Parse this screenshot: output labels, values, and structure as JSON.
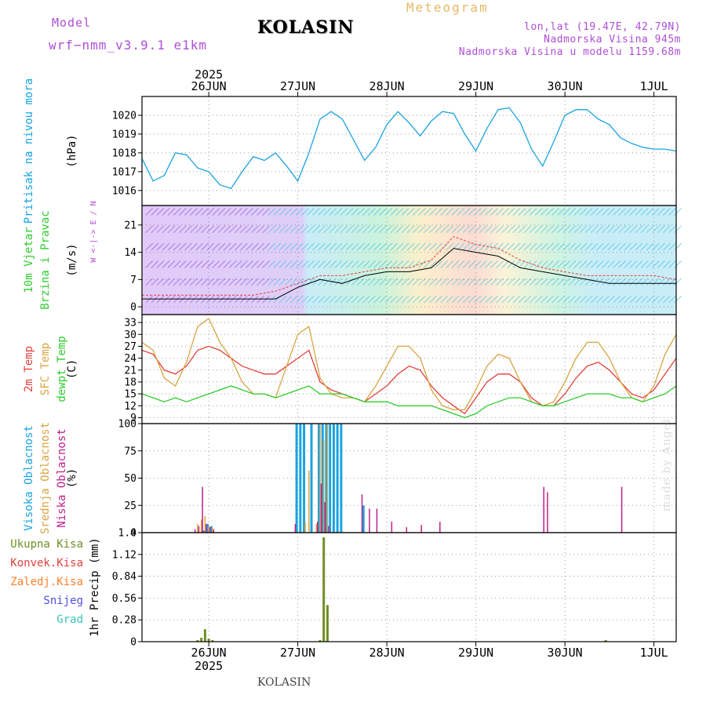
{
  "header": {
    "model_label": "Model",
    "model_run": "wrf−nmm_v3.9.1 e1km",
    "location": "KOLASIN",
    "product": "Meteogram",
    "coords": "lon,lat (19.47E, 42.79N)",
    "elevation": "Nadmorska Visina 945m",
    "model_elevation": "Nadmorska Visina u modelu 1159.68m"
  },
  "footer": {
    "location": "KOLASIN",
    "credit": "made by Angel"
  },
  "colors": {
    "pressure": "#1aa3e0",
    "temp2m": "#e0413c",
    "sfc_temp": "#d9a441",
    "dewpoint": "#2ecc2e",
    "cloud_high": "#1aa3e0",
    "cloud_mid": "#d9a441",
    "cloud_low": "#c01f8a",
    "precip_total": "#6f8f24",
    "precip_conv": "#e0413c",
    "precip_frz": "#ff7f2a",
    "snow": "#4f4fe0",
    "hail": "#39c6b9",
    "wind_axis_label": "#b04ed6"
  },
  "time_axis": {
    "top_year": "2025",
    "bottom_year": "2025",
    "days": [
      "26JUN",
      "27JUN",
      "28JUN",
      "29JUN",
      "30JUN",
      "1JUL"
    ]
  },
  "chart_data": [
    {
      "type": "line",
      "panel": "pressure",
      "ylabel_lines": [
        "Pritisak na nivou mora",
        "(hPa)"
      ],
      "yticks": [
        1016,
        1017,
        1018,
        1019,
        1020
      ],
      "ylim": [
        1015.2,
        1021.0
      ],
      "grid": true,
      "x_hours": [
        0,
        3,
        6,
        9,
        12,
        15,
        18,
        21,
        24,
        27,
        30,
        33,
        36,
        39,
        42,
        45,
        48,
        51,
        54,
        57,
        60,
        63,
        66,
        69,
        72,
        75,
        78,
        81,
        84,
        87,
        90,
        93,
        96,
        99,
        102,
        105,
        108,
        111,
        114,
        117,
        120,
        123,
        126,
        129,
        132,
        135,
        138,
        141,
        144
      ],
      "series": [
        {
          "values": [
            1017.7,
            1016.5,
            1016.8,
            1018.0,
            1017.9,
            1017.2,
            1017.0,
            1016.3,
            1016.1,
            1017.0,
            1017.8,
            1017.6,
            1018.0,
            1017.3,
            1016.5,
            1018.0,
            1019.8,
            1020.2,
            1019.8,
            1018.7,
            1017.6,
            1018.3,
            1019.5,
            1020.2,
            1019.6,
            1018.9,
            1019.7,
            1020.2,
            1020.1,
            1019.0,
            1018.1,
            1019.3,
            1020.3,
            1020.4,
            1019.6,
            1018.2,
            1017.3,
            1018.6,
            1020.0,
            1020.3,
            1020.3,
            1019.8,
            1019.5,
            1018.8,
            1018.5,
            1018.3,
            1018.2,
            1018.2,
            1018.1
          ]
        }
      ]
    },
    {
      "type": "line",
      "panel": "wind",
      "ylabel_lines": [
        "10m Vjetar",
        "Brzina i Pravac",
        "(m/s)"
      ],
      "direction_legend": "W <-|-> E / N",
      "yticks": [
        0,
        7,
        14,
        21
      ],
      "ylim": [
        -2,
        26
      ],
      "grid": true,
      "x_hours": [
        0,
        6,
        12,
        18,
        24,
        30,
        36,
        42,
        48,
        54,
        60,
        66,
        72,
        78,
        84,
        90,
        96,
        102,
        108,
        114,
        120,
        126,
        132,
        138,
        144
      ],
      "series": [
        {
          "values": [
            2,
            2,
            2,
            2,
            2,
            2,
            2,
            5,
            7,
            6,
            8,
            9,
            9,
            10,
            15,
            14,
            13,
            10,
            9,
            8,
            7,
            6,
            6,
            6,
            6
          ]
        },
        {
          "values": [
            3,
            3,
            3,
            3,
            3,
            3,
            4,
            6,
            8,
            8,
            9,
            10,
            10,
            12,
            18,
            16,
            15,
            12,
            10,
            9,
            8,
            8,
            8,
            8,
            7
          ]
        }
      ]
    },
    {
      "type": "line",
      "panel": "temperature",
      "ylabel_lines": [
        "2m Temp",
        "SFC Temp",
        "dewpt Temp",
        "(C)"
      ],
      "yticks": [
        9,
        12,
        15,
        18,
        21,
        24,
        27,
        30,
        33
      ],
      "ylim": [
        7.5,
        35
      ],
      "grid": true,
      "x_hours": [
        0,
        3,
        6,
        9,
        12,
        15,
        18,
        21,
        24,
        27,
        30,
        33,
        36,
        39,
        42,
        45,
        48,
        51,
        54,
        57,
        60,
        63,
        66,
        69,
        72,
        75,
        78,
        81,
        84,
        87,
        90,
        93,
        96,
        99,
        102,
        105,
        108,
        111,
        114,
        117,
        120,
        123,
        126,
        129,
        132,
        135,
        138,
        141,
        144
      ],
      "series": [
        {
          "name": "2m Temp",
          "values": [
            26,
            25,
            21,
            20,
            22,
            26,
            27,
            26,
            24,
            22,
            21,
            20,
            20,
            22,
            24,
            26,
            18,
            16,
            15,
            14,
            13,
            15,
            17,
            20,
            22,
            21,
            17,
            14,
            12,
            10,
            14,
            18,
            20,
            20,
            18,
            14,
            12,
            12,
            15,
            19,
            22,
            23,
            21,
            18,
            15,
            14,
            16,
            20,
            24
          ]
        },
        {
          "name": "SFC Temp",
          "values": [
            28,
            26,
            19,
            17,
            23,
            32,
            34,
            28,
            24,
            18,
            15,
            15,
            14,
            22,
            30,
            32,
            19,
            15,
            14,
            14,
            13,
            17,
            22,
            27,
            27,
            24,
            16,
            12,
            11,
            11,
            16,
            22,
            25,
            24,
            18,
            13,
            12,
            13,
            18,
            24,
            28,
            28,
            24,
            18,
            14,
            13,
            17,
            25,
            30
          ]
        },
        {
          "name": "dewpt Temp",
          "values": [
            15,
            14,
            13,
            14,
            13,
            14,
            15,
            16,
            17,
            16,
            15,
            15,
            14,
            15,
            16,
            17,
            15,
            15,
            15,
            14,
            13,
            13,
            13,
            12,
            12,
            12,
            12,
            11,
            10,
            9,
            10,
            12,
            13,
            14,
            14,
            13,
            12,
            12,
            13,
            14,
            15,
            15,
            15,
            14,
            14,
            13,
            14,
            15,
            17
          ]
        }
      ]
    },
    {
      "type": "bar",
      "panel": "clouds",
      "ylabel_lines": [
        "Visoka Oblacnost",
        "Srednja Oblacnost",
        "Niska Oblacnost",
        "(%)"
      ],
      "yticks": [
        0,
        25,
        50,
        75,
        100
      ],
      "ylim": [
        0,
        100
      ],
      "grid": true,
      "series": [
        {
          "name": "Visoka Oblacnost",
          "x_hours": [
            17,
            18,
            19,
            42,
            43,
            44,
            46,
            48,
            49,
            50,
            51,
            52,
            53,
            54,
            60
          ],
          "values": [
            2,
            8,
            6,
            100,
            100,
            100,
            100,
            100,
            100,
            100,
            100,
            100,
            100,
            100,
            25
          ]
        },
        {
          "name": "Srednja Oblacnost",
          "x_hours": [
            15,
            16,
            17,
            18,
            19,
            44,
            45,
            47,
            48,
            49,
            50
          ],
          "values": [
            8,
            12,
            15,
            6,
            4,
            10,
            57,
            8,
            100,
            85,
            100
          ]
        },
        {
          "name": "Niska Oblacnost",
          "x_hours": [
            14,
            15,
            16,
            17,
            18,
            19,
            41,
            47,
            48,
            49,
            50,
            59,
            61,
            63,
            67,
            71,
            75,
            80,
            108,
            109,
            129
          ],
          "values": [
            3,
            6,
            42,
            8,
            5,
            3,
            8,
            10,
            45,
            28,
            6,
            35,
            22,
            22,
            10,
            5,
            7,
            10,
            42,
            37,
            42
          ]
        }
      ]
    },
    {
      "type": "bar",
      "panel": "precipitation",
      "ylabel_lines": [
        "Ukupna Kisa",
        "Konvek.Kisa",
        "Zaledj.Kisa",
        "Snijeg",
        "Grad",
        "1hr Precip (mm)"
      ],
      "yticks": [
        0,
        0.28,
        0.56,
        0.84,
        1.12,
        1.4
      ],
      "ylim": [
        0,
        1.4
      ],
      "grid": true,
      "series": [
        {
          "name": "Ukupna Kisa",
          "x_hours": [
            15,
            16,
            17,
            18,
            19,
            48,
            49,
            50,
            125
          ],
          "values": [
            0.02,
            0.05,
            0.16,
            0.04,
            0.02,
            0.02,
            1.34,
            0.47,
            0.02
          ]
        }
      ]
    }
  ]
}
